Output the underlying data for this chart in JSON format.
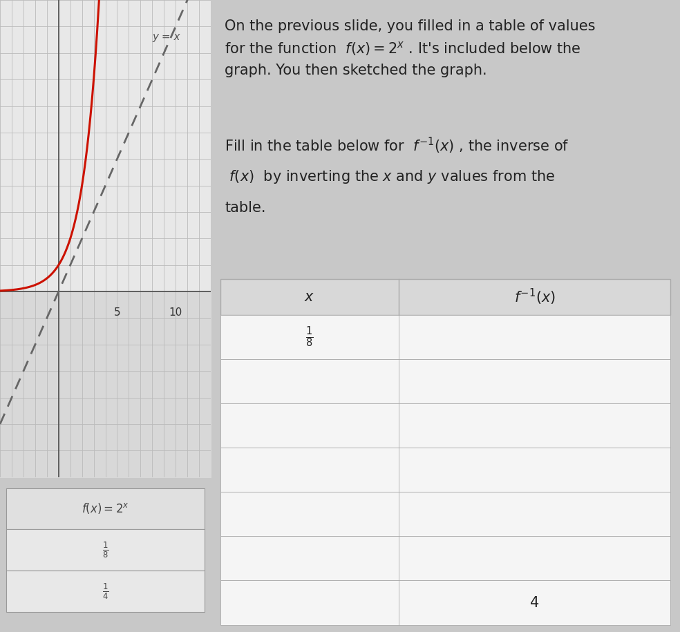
{
  "bg_color": "#c8c8c8",
  "left_panel_bg": "#c8c8c8",
  "graph_bg": "#e8e8e8",
  "graph_bg2": "#d8d8d8",
  "grid_color": "#bbbbbb",
  "grid_color2": "#aaaaaa",
  "right_panel_bg": "#ffffff",
  "yx_label": "y = x",
  "axis_label_5": "5",
  "axis_label_10": "10",
  "bottom_section_bg": "#c8c8c8",
  "bottom_table_bg": "#e0e0e0",
  "bottom_table_label": "f(x) = 2^x",
  "bottom_table_row1_x": "\\frac{1}{8}",
  "bottom_table_row2_x": "\\frac{1}{4}",
  "table_header_x": "x",
  "table_header_finv": "f^{-1}(x)",
  "table_x_values": [
    "\\frac{1}{8}",
    "",
    "",
    "",
    "",
    "",
    ""
  ],
  "table_finv_values": [
    "",
    "",
    "",
    "",
    "",
    "",
    "4"
  ],
  "num_table_rows": 7,
  "text_color": "#222222",
  "table_line_color": "#aaaaaa",
  "table_bg_header": "#d8d8d8",
  "table_bg_row": "#f0f0f0",
  "text_fontsize": 15
}
